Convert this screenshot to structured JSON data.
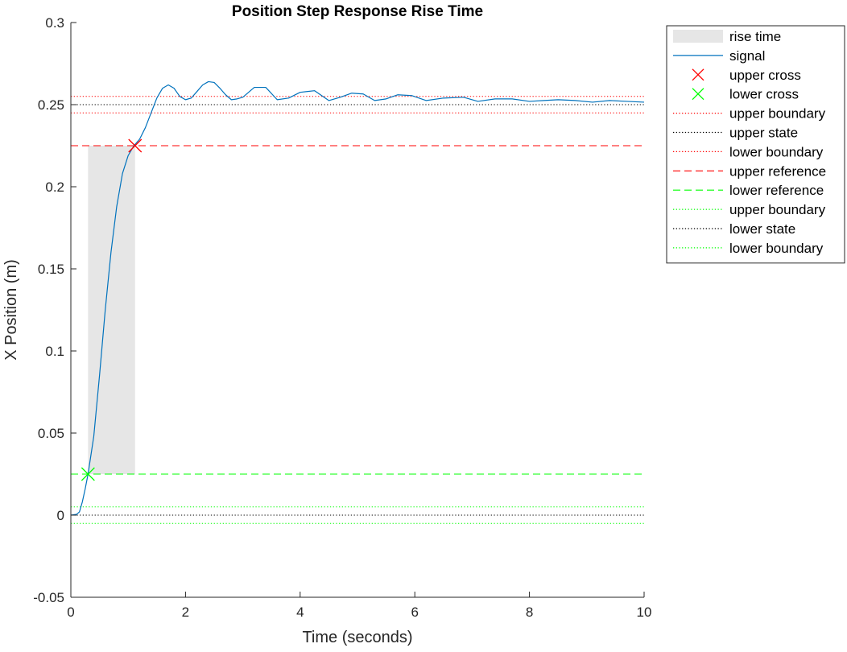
{
  "chart_data": {
    "type": "line",
    "title": "Position Step Response Rise Time",
    "xlabel": "Time (seconds)",
    "ylabel": "X Position (m)",
    "xlim": [
      0,
      10
    ],
    "ylim": [
      -0.05,
      0.3
    ],
    "x_ticks": [
      0,
      2,
      4,
      6,
      8,
      10
    ],
    "x_tick_labels": [
      "0",
      "2",
      "4",
      "6",
      "8",
      "10"
    ],
    "y_ticks": [
      -0.05,
      0,
      0.05,
      0.1,
      0.15,
      0.2,
      0.25,
      0.3
    ],
    "y_tick_labels": [
      "-0.05",
      "0",
      "0.05",
      "0.1",
      "0.15",
      "0.2",
      "0.25",
      "0.3"
    ],
    "grid": false,
    "legend_position": "outside-top-right",
    "rise_time": {
      "name": "rise time",
      "x_start": 0.3,
      "x_end": 1.12,
      "y_low": 0.025,
      "y_high": 0.225,
      "color": "#e6e6e6"
    },
    "signal": {
      "name": "signal",
      "color": "#0072bd",
      "x": [
        0,
        0.1,
        0.15,
        0.2,
        0.25,
        0.3,
        0.4,
        0.5,
        0.6,
        0.7,
        0.8,
        0.9,
        1.0,
        1.1,
        1.2,
        1.3,
        1.4,
        1.5,
        1.6,
        1.7,
        1.8,
        1.9,
        2.0,
        2.1,
        2.2,
        2.3,
        2.4,
        2.5,
        2.6,
        2.7,
        2.8,
        2.9,
        3.0,
        3.2,
        3.4,
        3.6,
        3.8,
        4.0,
        4.25,
        4.5,
        4.7,
        4.9,
        5.1,
        5.3,
        5.5,
        5.7,
        5.95,
        6.2,
        6.5,
        6.85,
        7.1,
        7.4,
        7.7,
        8.0,
        8.25,
        8.5,
        8.8,
        9.1,
        9.4,
        9.7,
        10.0
      ],
      "y": [
        0,
        0.0005,
        0.002,
        0.008,
        0.016,
        0.025,
        0.048,
        0.085,
        0.125,
        0.16,
        0.188,
        0.208,
        0.219,
        0.225,
        0.229,
        0.236,
        0.245,
        0.254,
        0.26,
        0.262,
        0.26,
        0.255,
        0.253,
        0.254,
        0.258,
        0.262,
        0.264,
        0.2635,
        0.26,
        0.256,
        0.253,
        0.2535,
        0.2545,
        0.2605,
        0.2605,
        0.253,
        0.254,
        0.2575,
        0.2585,
        0.2525,
        0.2545,
        0.257,
        0.2565,
        0.2525,
        0.2535,
        0.256,
        0.2555,
        0.2525,
        0.254,
        0.2545,
        0.252,
        0.2535,
        0.2535,
        0.252,
        0.2525,
        0.253,
        0.2525,
        0.2515,
        0.2525,
        0.252,
        0.2515
      ]
    },
    "markers": [
      {
        "name": "upper cross",
        "x": 1.12,
        "y": 0.225,
        "color": "#ff0000"
      },
      {
        "name": "lower cross",
        "x": 0.3,
        "y": 0.025,
        "color": "#00ff00"
      }
    ],
    "hlines": [
      {
        "name": "upper boundary",
        "y": 0.255,
        "color": "#ff0000",
        "style": "dotted"
      },
      {
        "name": "upper state",
        "y": 0.25,
        "color": "#000000",
        "style": "dotted"
      },
      {
        "name": "lower boundary",
        "y": 0.245,
        "color": "#ff0000",
        "style": "dotted"
      },
      {
        "name": "upper reference",
        "y": 0.225,
        "color": "#ff0000",
        "style": "dashed"
      },
      {
        "name": "lower reference",
        "y": 0.025,
        "color": "#00ff00",
        "style": "dashed"
      },
      {
        "name": "upper boundary",
        "y": 0.005,
        "color": "#00ff00",
        "style": "dotted"
      },
      {
        "name": "lower state",
        "y": 0,
        "color": "#000000",
        "style": "dotted"
      },
      {
        "name": "lower boundary",
        "y": -0.005,
        "color": "#00ff00",
        "style": "dotted"
      }
    ],
    "legend": [
      {
        "label": "rise time",
        "kind": "patch",
        "color": "#e6e6e6"
      },
      {
        "label": "signal",
        "kind": "line",
        "color": "#0072bd",
        "style": "solid"
      },
      {
        "label": "upper cross",
        "kind": "marker",
        "color": "#ff0000"
      },
      {
        "label": "lower cross",
        "kind": "marker",
        "color": "#00ff00"
      },
      {
        "label": "upper boundary",
        "kind": "line",
        "color": "#ff0000",
        "style": "dotted"
      },
      {
        "label": "upper state",
        "kind": "line",
        "color": "#000000",
        "style": "dotted"
      },
      {
        "label": "lower boundary",
        "kind": "line",
        "color": "#ff0000",
        "style": "dotted"
      },
      {
        "label": "upper reference",
        "kind": "line",
        "color": "#ff0000",
        "style": "dashed"
      },
      {
        "label": "lower reference",
        "kind": "line",
        "color": "#00ff00",
        "style": "dashed"
      },
      {
        "label": "upper boundary",
        "kind": "line",
        "color": "#00ff00",
        "style": "dotted"
      },
      {
        "label": "lower state",
        "kind": "line",
        "color": "#000000",
        "style": "dotted"
      },
      {
        "label": "lower boundary",
        "kind": "line",
        "color": "#00ff00",
        "style": "dotted"
      }
    ]
  }
}
